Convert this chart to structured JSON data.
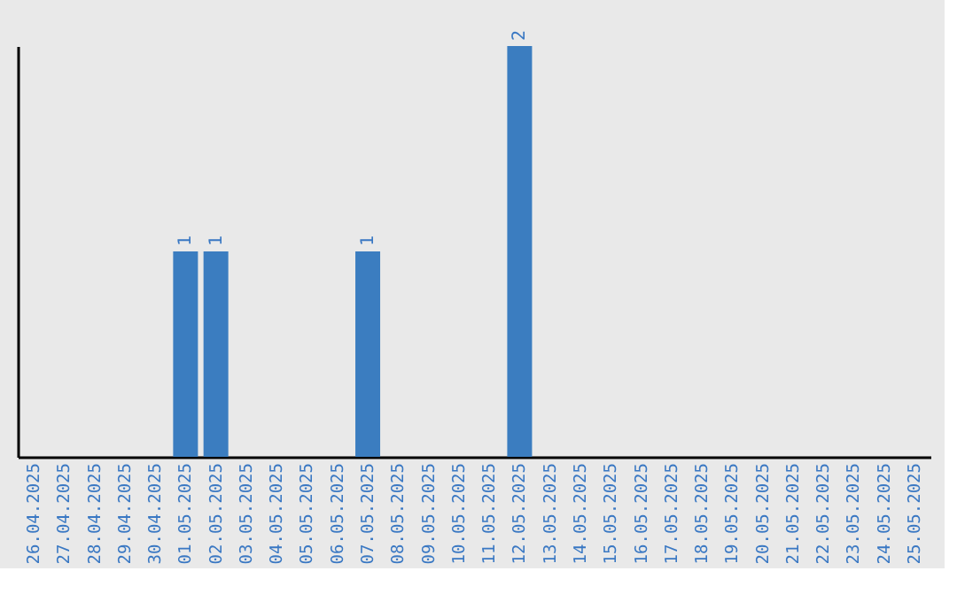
{
  "chart_data": {
    "type": "bar",
    "categories": [
      "26.04.2025",
      "27.04.2025",
      "28.04.2025",
      "29.04.2025",
      "30.04.2025",
      "01.05.2025",
      "02.05.2025",
      "03.05.2025",
      "04.05.2025",
      "05.05.2025",
      "06.05.2025",
      "07.05.2025",
      "08.05.2025",
      "09.05.2025",
      "10.05.2025",
      "11.05.2025",
      "12.05.2025",
      "13.05.2025",
      "14.05.2025",
      "15.05.2025",
      "16.05.2025",
      "17.05.2025",
      "18.05.2025",
      "19.05.2025",
      "20.05.2025",
      "21.05.2025",
      "22.05.2025",
      "23.05.2025",
      "24.05.2025",
      "25.05.2025"
    ],
    "values": [
      0,
      0,
      0,
      0,
      0,
      1,
      1,
      0,
      0,
      0,
      0,
      1,
      0,
      0,
      0,
      0,
      2,
      0,
      0,
      0,
      0,
      0,
      0,
      0,
      0,
      0,
      0,
      0,
      0,
      0
    ],
    "value_labels": [
      null,
      null,
      null,
      null,
      null,
      "1",
      "1",
      null,
      null,
      null,
      null,
      "1",
      null,
      null,
      null,
      null,
      "2",
      null,
      null,
      null,
      null,
      null,
      null,
      null,
      null,
      null,
      null,
      null,
      null,
      null
    ],
    "color": "#3b7dc0",
    "grid": false,
    "tick_labels": "x"
  }
}
